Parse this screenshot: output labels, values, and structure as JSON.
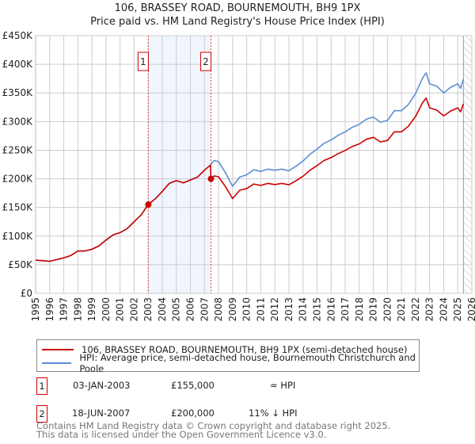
{
  "chart_data": {
    "type": "line",
    "title": "106, BRASSEY ROAD, BOURNEMOUTH, BH9 1PX",
    "subtitle": "Price paid vs. HM Land Registry's House Price Index (HPI)",
    "xlim": [
      1995,
      2026
    ],
    "ylim": [
      0,
      450000
    ],
    "y_ticks": [
      0,
      50000,
      100000,
      150000,
      200000,
      250000,
      300000,
      350000,
      400000,
      450000
    ],
    "y_tick_labels": [
      "£0",
      "£50K",
      "£100K",
      "£150K",
      "£200K",
      "£250K",
      "£300K",
      "£350K",
      "£400K",
      "£450K"
    ],
    "x_ticks": [
      1995,
      1996,
      1997,
      1998,
      1999,
      2000,
      2001,
      2002,
      2003,
      2004,
      2005,
      2006,
      2007,
      2008,
      2009,
      2010,
      2011,
      2012,
      2013,
      2014,
      2015,
      2016,
      2017,
      2018,
      2019,
      2020,
      2021,
      2022,
      2023,
      2024,
      2025,
      2026
    ],
    "x_tick_labels": [
      "1995",
      "1996",
      "1997",
      "1998",
      "1999",
      "2000",
      "2001",
      "2002",
      "2003",
      "2004",
      "2005",
      "2006",
      "2007",
      "2008",
      "2009",
      "2010",
      "2011",
      "2012",
      "2013",
      "2014",
      "2015",
      "2016",
      "2017",
      "2018",
      "2019",
      "2020",
      "2021",
      "2022",
      "2023",
      "2024",
      "2025",
      "2026"
    ],
    "grid": true,
    "series": [
      {
        "name": "106, BRASSEY ROAD, BOURNEMOUTH, BH9 1PX (semi-detached house)",
        "color": "#cc0000",
        "x": [
          1995,
          1995.5,
          1996,
          1996.5,
          1997,
          1997.5,
          1998,
          1998.5,
          1999,
          1999.5,
          2000,
          2000.5,
          2001,
          2001.5,
          2002,
          2002.5,
          2003,
          2003.5,
          2004,
          2004.5,
          2005,
          2005.5,
          2006,
          2006.5,
          2007,
          2007.42,
          2007.46,
          2007.7,
          2008,
          2008.5,
          2009,
          2009.5,
          2010,
          2010.5,
          2011,
          2011.5,
          2012,
          2012.5,
          2013,
          2013.5,
          2014,
          2014.5,
          2015,
          2015.5,
          2016,
          2016.5,
          2017,
          2017.5,
          2018,
          2018.5,
          2019,
          2019.5,
          2020,
          2020.5,
          2021,
          2021.5,
          2022,
          2022.5,
          2022.75,
          2023,
          2023.5,
          2024,
          2024.5,
          2025,
          2025.2,
          2025.4
        ],
        "y": [
          58000,
          57000,
          56000,
          59000,
          62000,
          66000,
          74000,
          74000,
          77000,
          83000,
          93000,
          102000,
          106000,
          113000,
          125000,
          137000,
          155000,
          165000,
          178000,
          192000,
          197000,
          193000,
          198000,
          203000,
          215000,
          224000,
          200000,
          205000,
          203500,
          186000,
          165500,
          180000,
          183000,
          191000,
          188500,
          192000,
          190000,
          192000,
          189500,
          196500,
          204500,
          215000,
          223000,
          232000,
          237000,
          244000,
          249500,
          256500,
          261000,
          269000,
          272500,
          264500,
          267000,
          282000,
          282000,
          292000,
          309000,
          333000,
          341000,
          324000,
          320000,
          310000,
          318500,
          324000,
          317000,
          331000
        ]
      },
      {
        "name": "HPI: Average price, semi-detached house, Bournemouth Christchurch and Poole",
        "color": "#5b8fd4",
        "x": [
          1995,
          1995.5,
          1996,
          1996.5,
          1997,
          1997.5,
          1998,
          1998.5,
          1999,
          1999.5,
          2000,
          2000.5,
          2001,
          2001.5,
          2002,
          2002.5,
          2003,
          2003.5,
          2004,
          2004.5,
          2005,
          2005.5,
          2006,
          2006.5,
          2007,
          2007.42,
          2007.46,
          2007.7,
          2008,
          2008.5,
          2009,
          2009.5,
          2010,
          2010.5,
          2011,
          2011.5,
          2012,
          2012.5,
          2013,
          2013.5,
          2014,
          2014.5,
          2015,
          2015.5,
          2016,
          2016.5,
          2017,
          2017.5,
          2018,
          2018.5,
          2019,
          2019.5,
          2020,
          2020.5,
          2021,
          2021.5,
          2022,
          2022.5,
          2022.75,
          2023,
          2023.5,
          2024,
          2024.5,
          2025,
          2025.2,
          2025.4
        ],
        "y": [
          58000,
          57000,
          56000,
          59000,
          62000,
          66000,
          74000,
          74000,
          77000,
          83000,
          93000,
          102000,
          106000,
          113000,
          125000,
          137000,
          155000,
          165000,
          178000,
          192000,
          197000,
          193000,
          198000,
          203000,
          215000,
          224000,
          226000,
          232000,
          230000,
          210000,
          187000,
          203000,
          207000,
          216000,
          213000,
          217000,
          215000,
          217000,
          214000,
          222000,
          231000,
          243000,
          252000,
          262000,
          268000,
          276000,
          282000,
          290000,
          295000,
          304000,
          308000,
          299000,
          302000,
          319000,
          319000,
          330000,
          349000,
          376000,
          385000,
          366000,
          362000,
          350000,
          360000,
          366000,
          358000,
          374000
        ]
      }
    ],
    "sales": [
      {
        "label": "1",
        "x": 2003.01,
        "y": 155000,
        "date": "03-JAN-2003",
        "price": "£155,000",
        "hpi_rel": "≈ HPI"
      },
      {
        "label": "2",
        "x": 2007.46,
        "y": 200000,
        "date": "18-JUN-2007",
        "price": "£200,000",
        "hpi_rel": "11% ↓ HPI"
      }
    ],
    "shaded_range": [
      2003.01,
      2007.46
    ],
    "forecast_hatch_from": 2025.4,
    "legend_placement": "below"
  },
  "legend": {
    "property": "106, BRASSEY ROAD, BOURNEMOUTH, BH9 1PX (semi-detached house)",
    "hpi": "HPI: Average price, semi-detached house, Bournemouth Christchurch and Poole"
  },
  "footer": {
    "line1": "Contains HM Land Registry data © Crown copyright and database right 2025.",
    "line2": "This data is licensed under the Open Government Licence v3.0."
  }
}
